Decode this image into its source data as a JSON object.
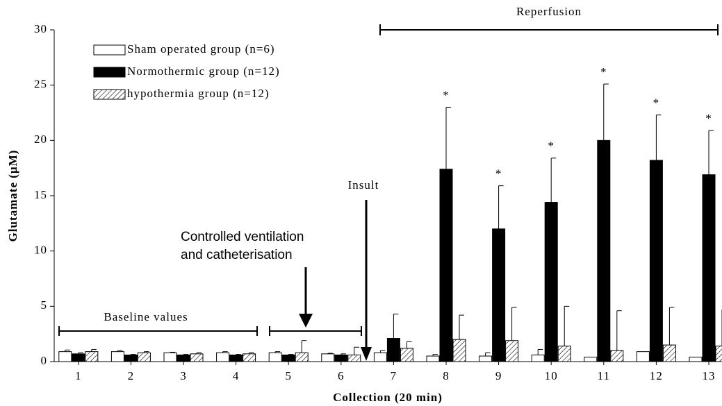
{
  "chart_data": {
    "type": "bar",
    "ylabel": "Glutamate (µM)",
    "xlabel": "Collection (20 min)",
    "categories": [
      "1",
      "2",
      "3",
      "4",
      "5",
      "6",
      "7",
      "8",
      "9",
      "10",
      "11",
      "12",
      "13"
    ],
    "series": [
      {
        "name": "Sham operated group (n=6)",
        "color": "#ffffff",
        "values": [
          0.9,
          0.9,
          0.8,
          0.8,
          0.8,
          0.7,
          0.8,
          0.5,
          0.5,
          0.6,
          0.4,
          0.9,
          0.4
        ],
        "errors": [
          0.15,
          0.1,
          0.05,
          0.1,
          0.1,
          0.05,
          0.2,
          0.15,
          0.3,
          0.5,
          0,
          0,
          0
        ]
      },
      {
        "name": "Normothermic group (n=12)",
        "color": "#000000",
        "values": [
          0.7,
          0.6,
          0.6,
          0.6,
          0.6,
          0.6,
          2.1,
          17.4,
          12.0,
          14.4,
          20.0,
          18.2,
          16.9
        ],
        "errors": [
          0.1,
          0.05,
          0.05,
          0.05,
          0.05,
          0.1,
          2.2,
          5.6,
          3.9,
          4.0,
          5.1,
          4.1,
          4.0
        ]
      },
      {
        "name": "hypothermia group (n=12)",
        "color": "#ffffff",
        "pattern": "hatch",
        "values": [
          0.9,
          0.8,
          0.7,
          0.7,
          0.8,
          0.6,
          1.2,
          2.0,
          1.9,
          1.4,
          1.0,
          1.5,
          1.4
        ],
        "errors": [
          0.2,
          0.1,
          0.1,
          0.1,
          1.1,
          0.7,
          0.6,
          2.2,
          3.0,
          3.6,
          3.6,
          3.4,
          3.3
        ]
      }
    ],
    "significance": [
      null,
      null,
      null,
      null,
      null,
      null,
      null,
      "*",
      "*",
      "*",
      "*",
      "*",
      "*"
    ],
    "ylim": [
      0,
      30
    ],
    "yticks": [
      0,
      5,
      10,
      15,
      20,
      25,
      30
    ],
    "annotations": {
      "reperfusion": "Reperfusion",
      "baseline": "Baseline values",
      "ventilation": [
        "Controlled ventilation",
        "and catheterisation"
      ],
      "insult": "Insult"
    }
  }
}
